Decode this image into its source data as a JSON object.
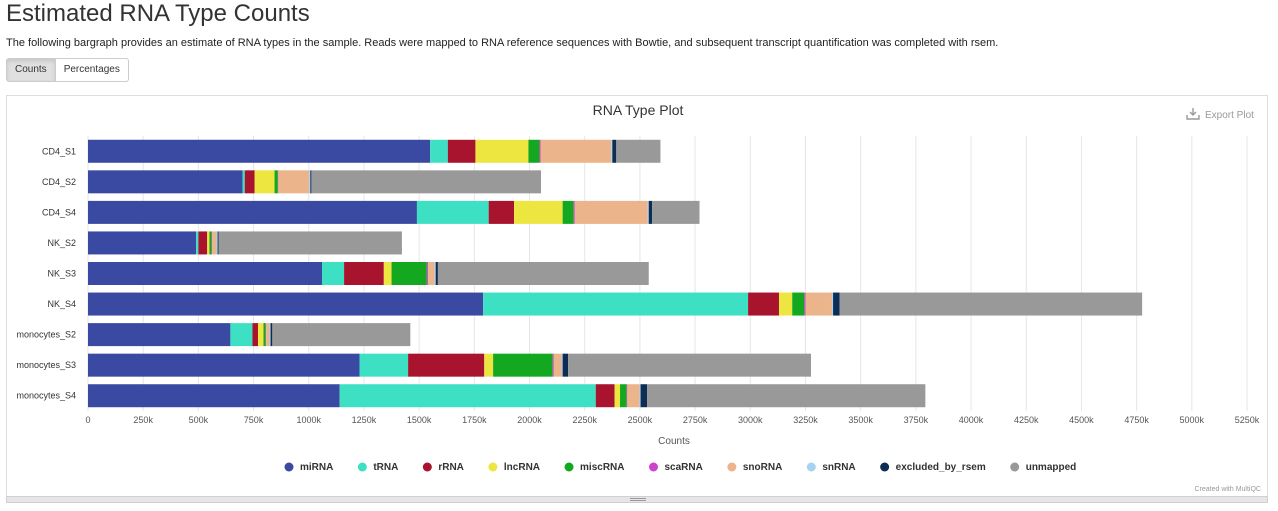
{
  "page": {
    "title": "Estimated RNA Type Counts",
    "description": "The following bargraph provides an estimate of RNA types in the sample. Reads were mapped to RNA reference sequences with Bowtie, and subsequent transcript quantification was completed with rsem."
  },
  "toolbar": {
    "counts_label": "Counts",
    "percentages_label": "Percentages"
  },
  "export": {
    "label": "Export Plot"
  },
  "credit": "Created with MultiQC",
  "chart_data": {
    "type": "bar",
    "orientation": "horizontal",
    "stacked": true,
    "title": "RNA Type Plot",
    "xlabel": "Counts",
    "ylabel": "",
    "xlim": [
      0,
      5250000
    ],
    "xticks": [
      0,
      250000,
      500000,
      750000,
      1000000,
      1250000,
      1500000,
      1750000,
      2000000,
      2250000,
      2500000,
      2750000,
      3000000,
      3250000,
      3500000,
      3750000,
      4000000,
      4250000,
      4500000,
      4750000,
      5000000,
      5250000
    ],
    "xtick_labels": [
      "0",
      "250k",
      "500k",
      "750k",
      "1000k",
      "1250k",
      "1500k",
      "1750k",
      "2000k",
      "2250k",
      "2500k",
      "2750k",
      "3000k",
      "3250k",
      "3500k",
      "3750k",
      "4000k",
      "4250k",
      "4500k",
      "4750k",
      "5000k",
      "5250k"
    ],
    "grid": true,
    "legend_position": "bottom",
    "categories": [
      "CD4_S1",
      "CD4_S2",
      "CD4_S4",
      "NK_S2",
      "NK_S3",
      "NK_S4",
      "monocytes_S2",
      "monocytes_S3",
      "monocytes_S4"
    ],
    "series": [
      {
        "name": "miRNA",
        "color": "#3a4aa2",
        "values": [
          1550000,
          700000,
          1490000,
          490000,
          1060000,
          1790000,
          645000,
          1230000,
          1140000
        ]
      },
      {
        "name": "tRNA",
        "color": "#3ee0c4",
        "values": [
          80000,
          10000,
          325000,
          10000,
          100000,
          1200000,
          100000,
          220000,
          1160000
        ]
      },
      {
        "name": "rRNA",
        "color": "#a8132d",
        "values": [
          125000,
          45000,
          115000,
          40000,
          180000,
          140000,
          25000,
          345000,
          85000
        ]
      },
      {
        "name": "lncRNA",
        "color": "#ede641",
        "values": [
          240000,
          90000,
          220000,
          10000,
          35000,
          60000,
          25000,
          40000,
          25000
        ]
      },
      {
        "name": "miscRNA",
        "color": "#14a820",
        "values": [
          50000,
          15000,
          50000,
          10000,
          160000,
          55000,
          10000,
          270000,
          30000
        ]
      },
      {
        "name": "scaRNA",
        "color": "#cc44cc",
        "values": [
          5000,
          2000,
          5000,
          2000,
          5000,
          5000,
          2000,
          5000,
          3000
        ]
      },
      {
        "name": "snoRNA",
        "color": "#ebb48a",
        "values": [
          320000,
          140000,
          330000,
          20000,
          30000,
          120000,
          15000,
          35000,
          55000
        ]
      },
      {
        "name": "snRNA",
        "color": "#a8d3f0",
        "values": [
          5000,
          5000,
          5000,
          5000,
          5000,
          5000,
          5000,
          5000,
          5000
        ]
      },
      {
        "name": "excluded_by_rsem",
        "color": "#0d2d55",
        "values": [
          18000,
          5000,
          15000,
          5000,
          10000,
          30000,
          8000,
          25000,
          30000
        ]
      },
      {
        "name": "unmapped",
        "color": "#999999",
        "values": [
          200000,
          1040000,
          215000,
          830000,
          955000,
          1370000,
          625000,
          1100000,
          1260000
        ]
      }
    ]
  }
}
